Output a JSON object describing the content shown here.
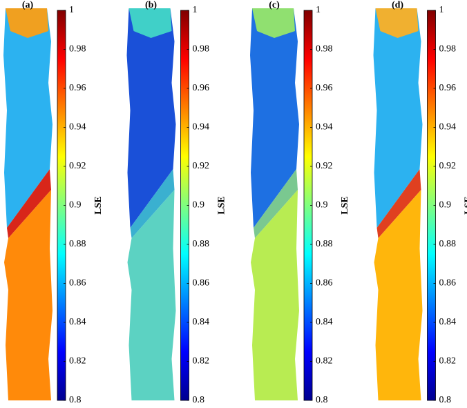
{
  "panels": [
    {
      "label": "(a)",
      "colorbar": {
        "label": "LSE",
        "lim": [
          0.8,
          1
        ],
        "ticks": [
          0.8,
          0.82,
          0.84,
          0.86,
          0.88,
          0.9,
          0.92,
          0.94,
          0.96,
          0.98,
          1
        ]
      }
    },
    {
      "label": "(b)",
      "colorbar": {
        "label": "LSE",
        "lim": [
          0.8,
          1
        ],
        "ticks": [
          0.8,
          0.82,
          0.84,
          0.86,
          0.88,
          0.9,
          0.92,
          0.94,
          0.96,
          0.98,
          1
        ]
      }
    },
    {
      "label": "(c)",
      "colorbar": {
        "label": "LSE",
        "lim": [
          0.8,
          1
        ],
        "ticks": [
          0.8,
          0.82,
          0.84,
          0.86,
          0.88,
          0.9,
          0.92,
          0.94,
          0.96,
          0.98,
          1
        ]
      }
    },
    {
      "label": "(d)",
      "colorbar": {
        "label": "LSE",
        "lim": [
          0.8,
          1
        ],
        "ticks": [
          0.8,
          0.82,
          0.84,
          0.86,
          0.88,
          0.9,
          0.92,
          0.94,
          0.96,
          0.98,
          1
        ]
      }
    }
  ]
}
